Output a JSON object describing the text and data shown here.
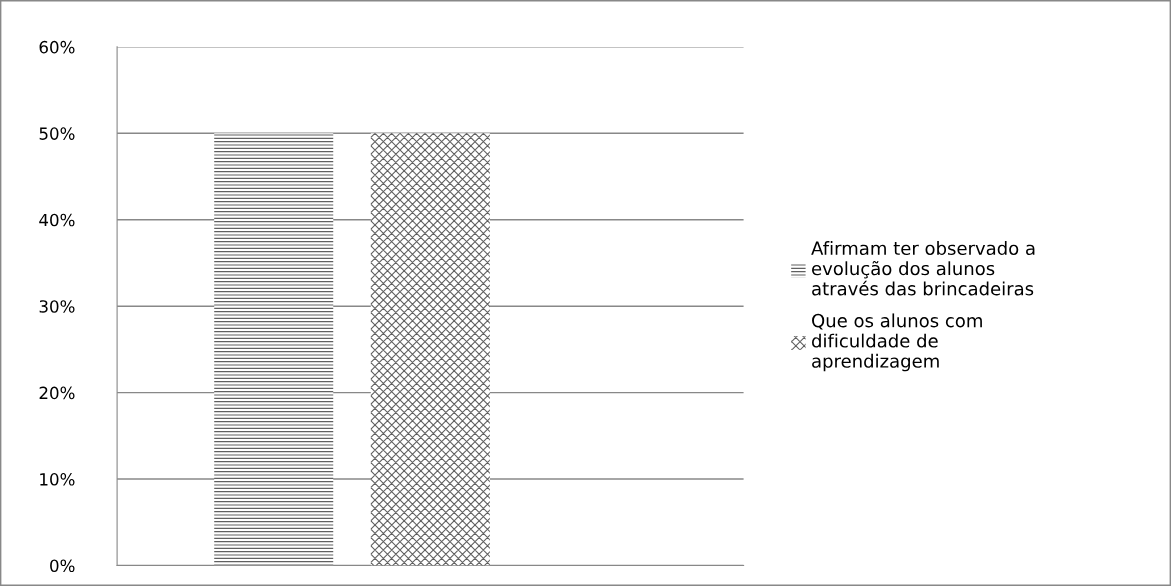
{
  "chart_data": {
    "type": "bar",
    "categories": [
      null
    ],
    "series": [
      {
        "name": "Afirmam ter observado a\nevolução dos alunos\natravés das brincadeiras",
        "color": "#606060",
        "values": [
          50
        ]
      },
      {
        "name": "Que os alunos com\ndificuldade de\naprendizagem",
        "color": "#606060",
        "values": [
          50
        ]
      }
    ],
    "ylim": [
      0,
      60
    ],
    "yticks": [
      {
        "value": 0,
        "label": "0%"
      },
      {
        "value": 10,
        "label": "10%"
      },
      {
        "value": 20,
        "label": "20%"
      },
      {
        "value": 30,
        "label": "30%"
      },
      {
        "value": 40,
        "label": "40%"
      },
      {
        "value": 50,
        "label": "50%"
      },
      {
        "value": 60,
        "label": "60%"
      }
    ],
    "grid": "y",
    "legend": "right"
  }
}
